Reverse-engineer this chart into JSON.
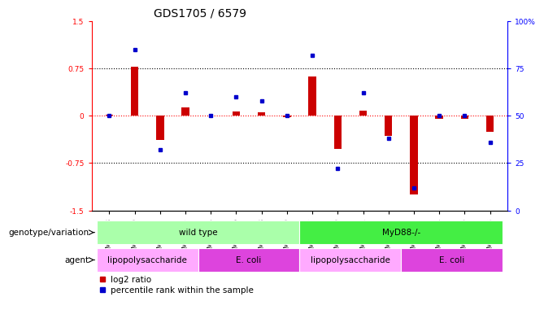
{
  "title": "GDS1705 / 6579",
  "samples": [
    "GSM22618",
    "GSM22620",
    "GSM22622",
    "GSM22625",
    "GSM22634",
    "GSM22636",
    "GSM22638",
    "GSM22640",
    "GSM22627",
    "GSM22629",
    "GSM22631",
    "GSM22632",
    "GSM22642",
    "GSM22644",
    "GSM22646",
    "GSM22648"
  ],
  "log2_ratio": [
    0.02,
    0.78,
    -0.38,
    0.13,
    0.0,
    0.07,
    0.05,
    -0.02,
    0.62,
    -0.52,
    0.08,
    -0.32,
    -1.25,
    -0.05,
    -0.05,
    -0.25
  ],
  "percentile": [
    50,
    85,
    32,
    62,
    50,
    60,
    58,
    50,
    82,
    22,
    62,
    38,
    12,
    50,
    50,
    36
  ],
  "ylim_left": [
    -1.5,
    1.5
  ],
  "ylim_right": [
    0,
    100
  ],
  "yticks_left": [
    -1.5,
    -0.75,
    0,
    0.75,
    1.5
  ],
  "yticks_right": [
    0,
    25,
    50,
    75,
    100
  ],
  "hlines_dotted": [
    0.75,
    -0.75
  ],
  "bar_color": "#cc0000",
  "dot_color": "#0000cc",
  "genotype_row": [
    {
      "label": "wild type",
      "start": 0,
      "end": 8,
      "color": "#aaffaa"
    },
    {
      "label": "MyD88-/-",
      "start": 8,
      "end": 16,
      "color": "#44ee44"
    }
  ],
  "agent_row": [
    {
      "label": "lipopolysaccharide",
      "start": 0,
      "end": 4,
      "color": "#ffaaff"
    },
    {
      "label": "E. coli",
      "start": 4,
      "end": 8,
      "color": "#dd44dd"
    },
    {
      "label": "lipopolysaccharide",
      "start": 8,
      "end": 12,
      "color": "#ffaaff"
    },
    {
      "label": "E. coli",
      "start": 12,
      "end": 16,
      "color": "#dd44dd"
    }
  ],
  "legend_log2_label": "log2 ratio",
  "legend_pct_label": "percentile rank within the sample",
  "genotype_label": "genotype/variation",
  "agent_label": "agent",
  "title_fontsize": 10,
  "tick_fontsize": 6.5,
  "label_fontsize": 7.5,
  "annotation_fontsize": 7.5
}
